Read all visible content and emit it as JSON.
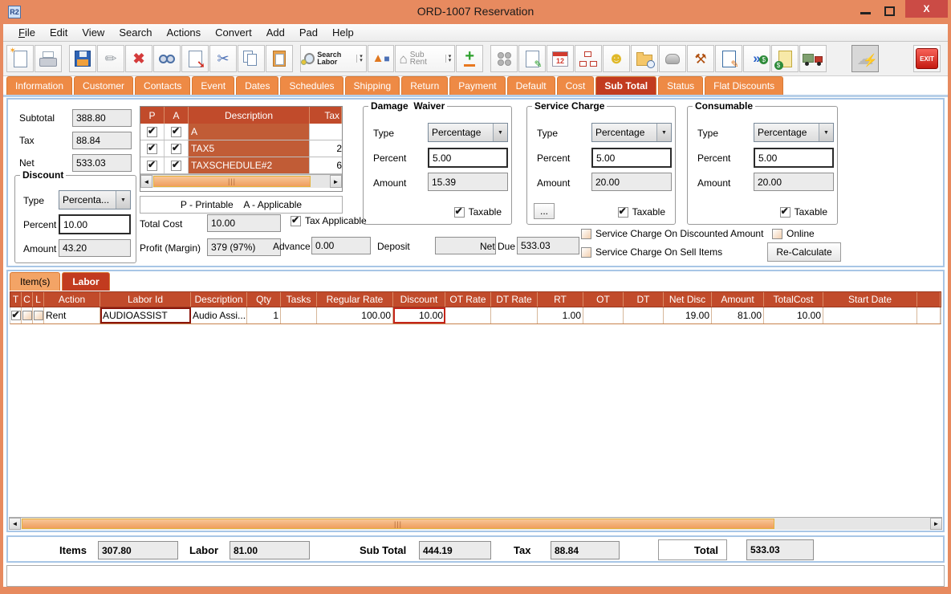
{
  "window": {
    "title": "ORD-1007 Reservation",
    "app_icon": "R2"
  },
  "menu": {
    "items": [
      "File",
      "Edit",
      "View",
      "Search",
      "Actions",
      "Convert",
      "Add",
      "Pad",
      "Help"
    ]
  },
  "toolbar": {
    "groups": [
      [
        {
          "name": "new-document"
        },
        {
          "name": "print"
        }
      ],
      [
        {
          "name": "save"
        },
        {
          "name": "edit-pencil"
        },
        {
          "name": "delete"
        },
        {
          "name": "find-binoculars"
        },
        {
          "name": "send-document"
        },
        {
          "name": "cut"
        },
        {
          "name": "copy"
        },
        {
          "name": "paste"
        }
      ],
      [
        {
          "name": "search-labor",
          "label": "Search Labor",
          "arrows": true
        },
        {
          "name": "shapes-3d"
        },
        {
          "name": "sub-rent",
          "label": "Sub Rent",
          "arrows": true
        },
        {
          "name": "add-item"
        }
      ],
      [
        {
          "name": "group-items"
        },
        {
          "name": "notes-edit"
        },
        {
          "name": "calendar"
        },
        {
          "name": "org-chart"
        },
        {
          "name": "smiley"
        },
        {
          "name": "folder-time"
        },
        {
          "name": "stone"
        },
        {
          "name": "worker-tools"
        },
        {
          "name": "edit-document"
        },
        {
          "name": "forward-dollar"
        },
        {
          "name": "notes-dollar"
        },
        {
          "name": "truck"
        }
      ],
      [
        {
          "name": "quote-lightning"
        }
      ],
      [
        {
          "name": "exit",
          "label": "EXIT"
        }
      ]
    ]
  },
  "tabs": {
    "items": [
      "Information",
      "Customer",
      "Contacts",
      "Event",
      "Dates",
      "Schedules",
      "Shipping",
      "Return",
      "Payment",
      "Default",
      "Cost",
      "Sub Total",
      "Status",
      "Flat Discounts"
    ],
    "active": "Sub Total"
  },
  "subtotal_panel": {
    "subtotal_label": "Subtotal",
    "subtotal_value": "388.80",
    "tax_label": "Tax",
    "tax_value": "88.84",
    "net_label": "Net",
    "net_value": "533.03",
    "discount": {
      "title": "Discount",
      "type_label": "Type",
      "type_value": "Percenta...",
      "percent_label": "Percent",
      "percent_value": "10.00",
      "amount_label": "Amount",
      "amount_value": "43.20"
    },
    "tax_table": {
      "headers": [
        "P",
        "A",
        "Description",
        "Tax"
      ],
      "rows": [
        {
          "p": true,
          "a": true,
          "description": "A",
          "tax": ""
        },
        {
          "p": true,
          "a": true,
          "description": "TAX5",
          "tax": "2"
        },
        {
          "p": true,
          "a": true,
          "description": "TAXSCHEDULE#2",
          "tax": "6"
        }
      ],
      "legend": "P - Printable    A - Applicable"
    },
    "total_cost_label": "Total Cost",
    "total_cost_value": "10.00",
    "profit_label": "Profit (Margin)",
    "profit_value": "379 (97%)",
    "tax_applicable_label": "Tax Applicable",
    "advance_label": "Advance",
    "advance_value": "0.00",
    "deposit_label": "Deposit",
    "deposit_value": "",
    "net_due_label": "Net Due",
    "net_due_value": "533.03",
    "damage_waiver": {
      "title": "Damage  Waiver",
      "type_label": "Type",
      "type_value": "Percentage",
      "percent_label": "Percent",
      "percent_value": "5.00",
      "amount_label": "Amount",
      "amount_value": "15.39",
      "taxable_label": "Taxable"
    },
    "service_charge": {
      "title": "Service Charge",
      "type_label": "Type",
      "type_value": "Percentage",
      "percent_label": "Percent",
      "percent_value": "5.00",
      "amount_label": "Amount",
      "amount_value": "20.00",
      "taxable_label": "Taxable",
      "more_label": "..."
    },
    "consumable": {
      "title": "Consumable",
      "type_label": "Type",
      "type_value": "Percentage",
      "percent_label": "Percent",
      "percent_value": "5.00",
      "amount_label": "Amount",
      "amount_value": "20.00",
      "taxable_label": "Taxable"
    },
    "options": {
      "sc_discounted_label": "Service Charge On Discounted Amount",
      "online_label": "Online",
      "sc_sell_label": "Service Charge On Sell Items",
      "recalculate_label": "Re-Calculate"
    }
  },
  "detail_tabs": {
    "items": [
      "Item(s)",
      "Labor"
    ],
    "active": "Labor"
  },
  "labor_table": {
    "columns": [
      "T",
      "C",
      "L",
      "Action",
      "Labor Id",
      "Description",
      "Qty",
      "Tasks",
      "Regular Rate",
      "Discount",
      "OT Rate",
      "DT Rate",
      "RT",
      "OT",
      "DT",
      "Net Disc",
      "Amount",
      "TotalCost",
      "Start Date",
      ""
    ],
    "rows": [
      {
        "t": true,
        "c": false,
        "l": false,
        "cells": [
          "Rent",
          "AUDIOASSIST",
          "Audio Assi...",
          "1",
          "",
          "100.00",
          "10.00",
          "",
          "",
          "1.00",
          "",
          "",
          "19.00",
          "81.00",
          "10.00",
          "",
          ""
        ]
      }
    ]
  },
  "summary": {
    "items_label": "Items",
    "items_value": "307.80",
    "labor_label": "Labor",
    "labor_value": "81.00",
    "subtotal_label": "Sub Total",
    "subtotal_value": "444.19",
    "tax_label": "Tax",
    "tax_value": "88.84",
    "total_label": "Total",
    "total_value": "533.03"
  },
  "status_bar": {
    "text": ""
  }
}
